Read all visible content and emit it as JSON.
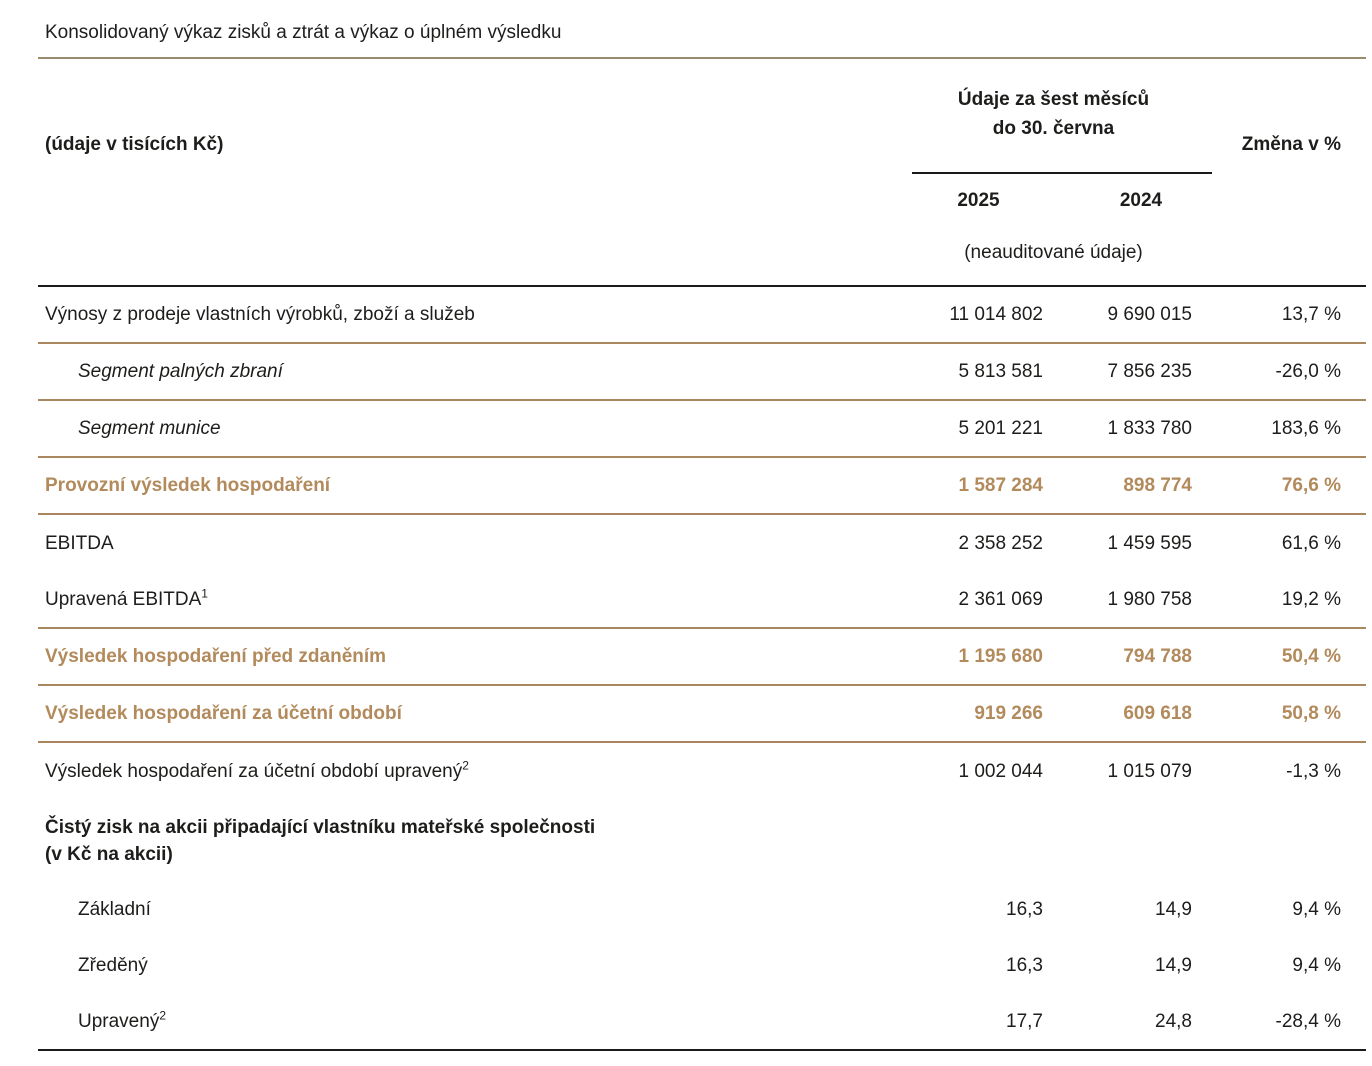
{
  "title": "Konsolidovaný výkaz zisků a ztrát a výkaz o úplném výsledku",
  "header": {
    "unit_label": "(údaje v tisících Kč)",
    "period_line1": "Údaje za šest měsíců",
    "period_line2": "do 30. června",
    "year_2025": "2025",
    "year_2024": "2024",
    "note": "(neauditované údaje)",
    "change_label": "Změna v %"
  },
  "colors": {
    "accent_brown": "#b28a5c",
    "divider_tan": "#a9885f",
    "rule_black": "#1a1a1a",
    "text": "#1d1d1b"
  },
  "rows": [
    {
      "label": "Výnosy z prodeje vlastních výrobků, zboží a služeb",
      "y2025": "11 014 802",
      "y2024": "9 690 015",
      "change": "13,7 %"
    },
    {
      "label": "Segment palných zbraní",
      "y2025": "5 813 581",
      "y2024": "7 856 235",
      "change": "-26,0 %"
    },
    {
      "label": "Segment munice",
      "y2025": "5 201 221",
      "y2024": "1 833 780",
      "change": "183,6 %"
    },
    {
      "label": "Provozní výsledek hospodaření",
      "y2025": "1 587 284",
      "y2024": "898 774",
      "change": "76,6 %"
    },
    {
      "label": "EBITDA",
      "y2025": "2 358 252",
      "y2024": "1 459 595",
      "change": "61,6 %"
    },
    {
      "label": "Upravená EBITDA",
      "sup": "1",
      "y2025": "2 361 069",
      "y2024": "1 980 758",
      "change": "19,2 %"
    },
    {
      "label": "Výsledek hospodaření před zdaněním",
      "y2025": "1 195 680",
      "y2024": "794 788",
      "change": "50,4 %"
    },
    {
      "label": "Výsledek hospodaření za účetní období",
      "y2025": "919 266",
      "y2024": "609 618",
      "change": "50,8 %"
    },
    {
      "label": "Výsledek hospodaření za účetní období upravený",
      "sup": "2",
      "y2025": "1 002 044",
      "y2024": "1 015 079",
      "change": "-1,3 %"
    },
    {
      "label": "Čistý zisk na akcii připadající vlastníku mateřské společnosti",
      "label2": "(v Kč na akcii)"
    },
    {
      "label": "Základní",
      "y2025": "16,3",
      "y2024": "14,9",
      "change": "9,4 %"
    },
    {
      "label": "Zředěný",
      "y2025": "16,3",
      "y2024": "14,9",
      "change": "9,4 %"
    },
    {
      "label": "Upravený",
      "sup": "2",
      "y2025": "17,7",
      "y2024": "24,8",
      "change": "-28,4 %"
    }
  ]
}
